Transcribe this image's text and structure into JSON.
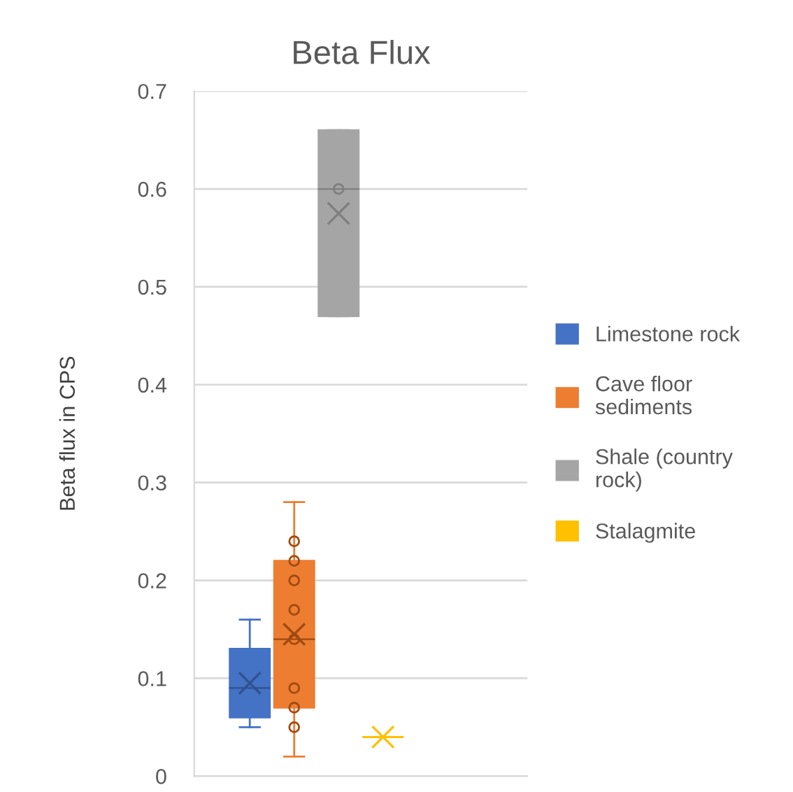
{
  "chart_data": {
    "type": "box",
    "title": "Beta Flux",
    "ylabel": "Beta flux in CPS",
    "categories": [
      null
    ],
    "ylim": [
      0,
      0.7
    ],
    "yticks": [
      0,
      0.1,
      0.2,
      0.3,
      0.4,
      0.5,
      0.6,
      0.7
    ],
    "grid": "y",
    "legend": "right",
    "series": [
      {
        "name": "Limestone rock",
        "color": "#4472c4",
        "boxes": [
          {
            "low": 0.05,
            "q1": 0.06,
            "median": 0.09,
            "q3": 0.13,
            "high": 0.16,
            "mean": 0.095
          }
        ]
      },
      {
        "name": "Cave floor sediments",
        "color": "#ed7d31",
        "boxes": [
          {
            "low": 0.02,
            "q1": 0.07,
            "median": 0.14,
            "q3": 0.22,
            "high": 0.28,
            "mean": 0.145,
            "outliers": [
              0.05,
              0.07,
              0.09,
              0.14,
              0.17,
              0.2,
              0.22,
              0.24
            ]
          }
        ]
      },
      {
        "name": "Shale (country rock)",
        "color": "#a5a5a5",
        "boxes": [
          {
            "low": 0.47,
            "q1": 0.47,
            "median": 0.6,
            "q3": 0.66,
            "high": 0.66,
            "mean": 0.575,
            "outliers": [
              0.6
            ]
          }
        ]
      },
      {
        "name": "Stalagmite",
        "color": "#ffc000",
        "boxes": [
          {
            "low": 0.04,
            "q1": 0.04,
            "median": 0.04,
            "q3": 0.04,
            "high": 0.04,
            "mean": 0.04
          }
        ]
      }
    ]
  }
}
